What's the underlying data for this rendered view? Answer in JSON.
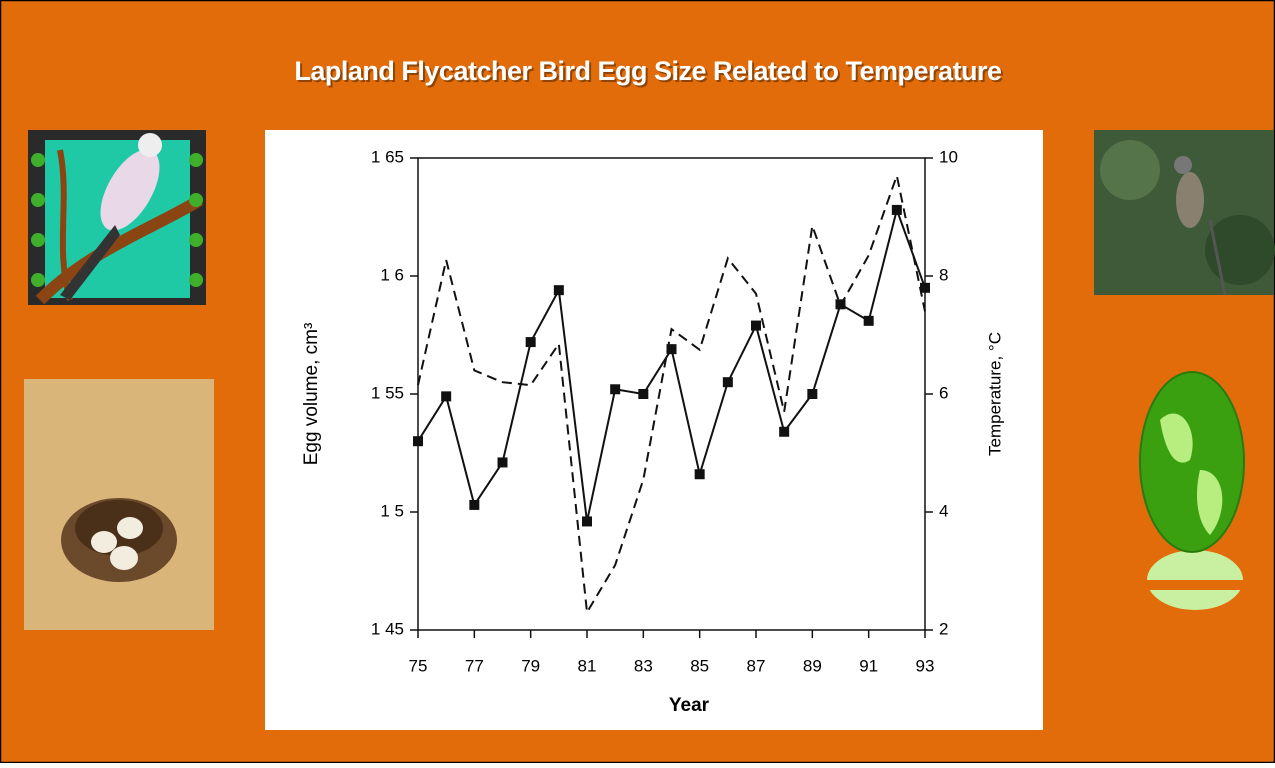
{
  "chart_data": {
    "type": "line",
    "title": "Lapland Flycatcher Bird Egg Size Related to Temperature",
    "x_label": "Year",
    "y_label": "Egg volume, cm³",
    "y2_label": "Temperature, °C",
    "x": [
      75,
      76,
      77,
      78,
      79,
      80,
      81,
      82,
      83,
      84,
      85,
      86,
      87,
      88,
      89,
      90,
      91,
      92,
      93
    ],
    "xlim": [
      75,
      93
    ],
    "xticks": [
      75,
      77,
      79,
      81,
      83,
      85,
      87,
      89,
      91,
      93
    ],
    "ylim": [
      1.45,
      1.65
    ],
    "yticks": [
      {
        "value": 1.45,
        "label": "1 45"
      },
      {
        "value": 1.5,
        "label": "1 5"
      },
      {
        "value": 1.55,
        "label": "1 55"
      },
      {
        "value": 1.6,
        "label": "1 6"
      },
      {
        "value": 1.65,
        "label": "1 65"
      }
    ],
    "y2lim": [
      2,
      10
    ],
    "y2ticks": [
      2,
      4,
      6,
      8,
      10
    ],
    "grid": false,
    "series": [
      {
        "color": "#111111",
        "dash": false,
        "marker": "square",
        "values": [
          1.53,
          1.549,
          1.503,
          1.521,
          1.572,
          1.594,
          1.496,
          1.552,
          1.55,
          1.569,
          1.516,
          1.555,
          1.579,
          1.534,
          1.55,
          1.588,
          1.581,
          1.628,
          1.595
        ]
      },
      {
        "color": "#111111",
        "dash": true,
        "marker": "none",
        "axis": "y2",
        "values": [
          6.15,
          8.27,
          6.4,
          6.2,
          6.15,
          6.85,
          2.3,
          3.1,
          4.55,
          7.1,
          6.75,
          8.3,
          7.7,
          5.7,
          8.85,
          7.5,
          8.35,
          9.7,
          7.4
        ]
      }
    ]
  }
}
